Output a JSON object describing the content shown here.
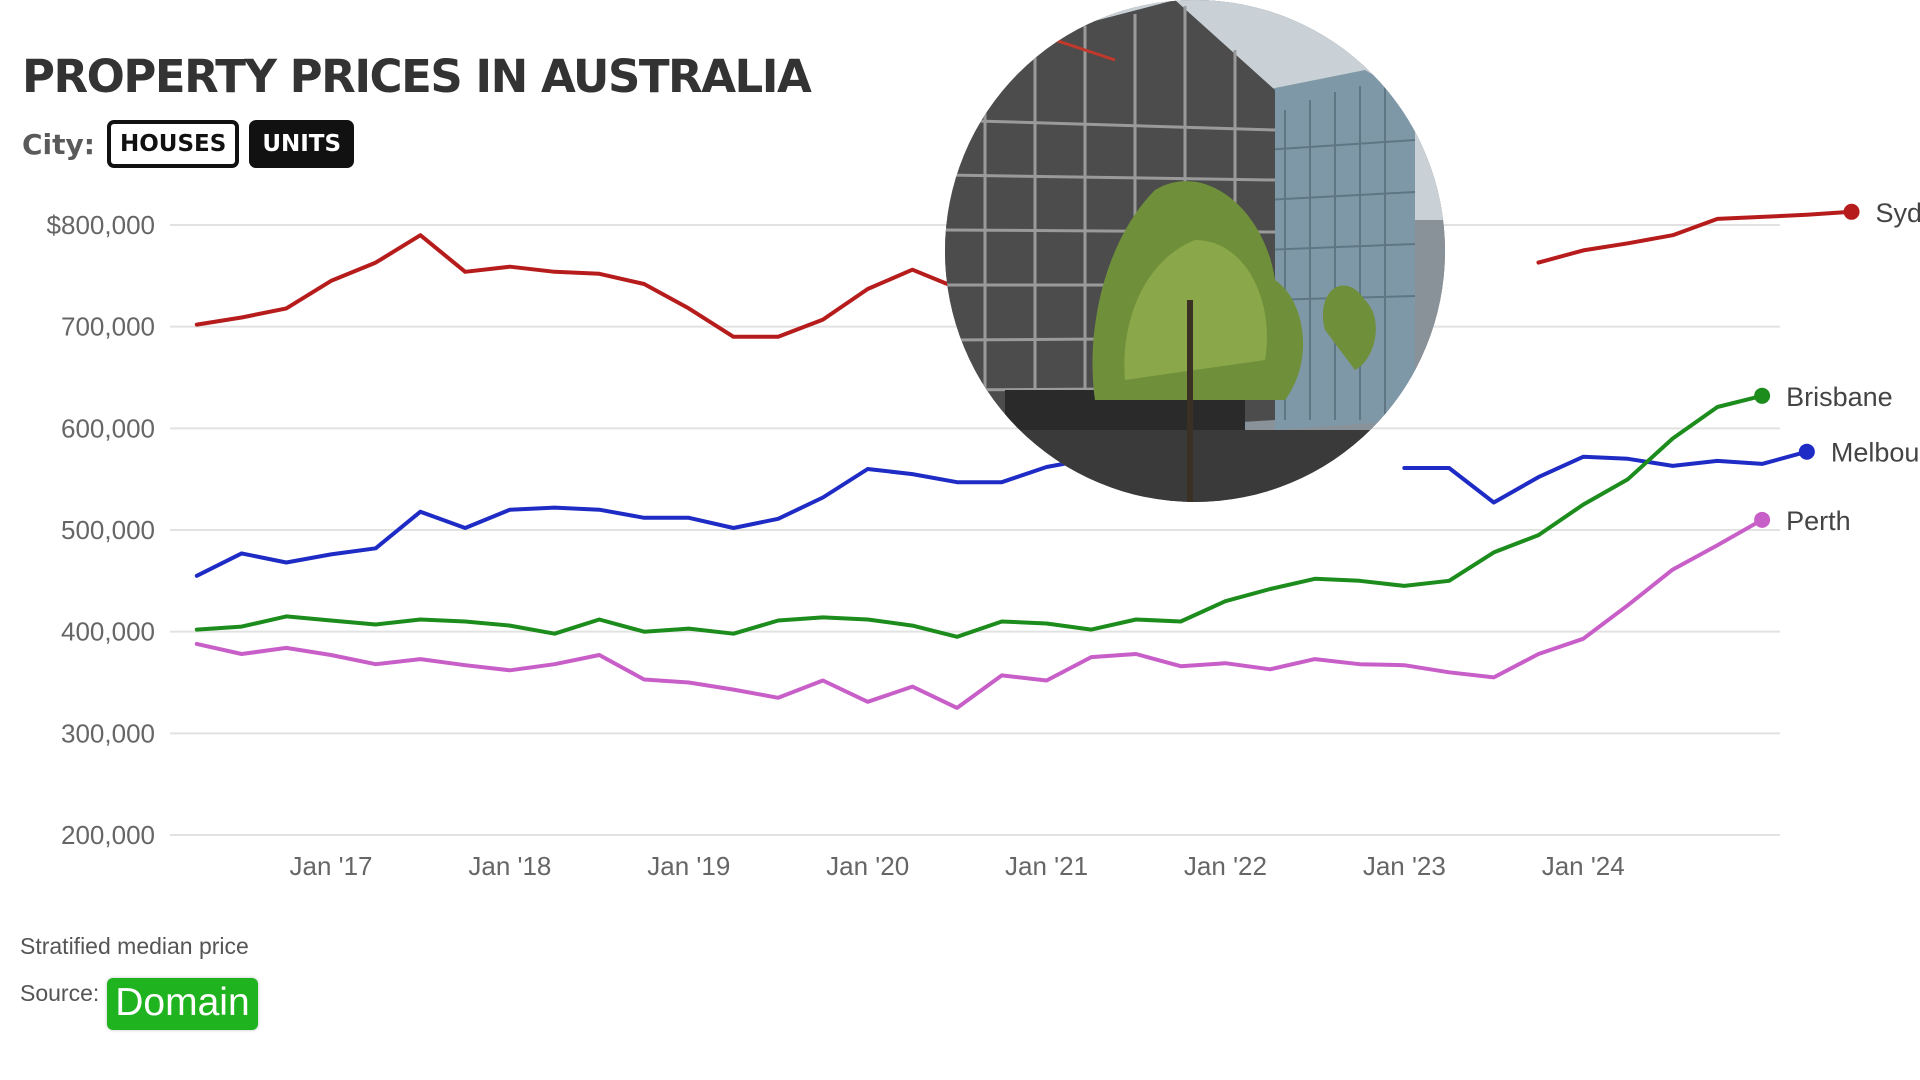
{
  "title": "PROPERTY PRICES IN AUSTRALIA",
  "toggle": {
    "label": "City:",
    "houses": "HOUSES",
    "units": "UNITS",
    "selected": "UNITS"
  },
  "footnote": "Stratified median price",
  "source": {
    "label": "Source:",
    "logo_text": "Domain",
    "logo_color": "#1fb41f"
  },
  "photo": {
    "subject": "building under construction with scaffolding, glass tower and trees",
    "icon": "photo-inset"
  },
  "chart_data": {
    "type": "line",
    "ylim": [
      200000,
      800000
    ],
    "yticks": [
      200000,
      300000,
      400000,
      500000,
      600000,
      700000,
      800000
    ],
    "ytick_labels": [
      "200,000",
      "300,000",
      "400,000",
      "500,000",
      "600,000",
      "700,000",
      "$800,000"
    ],
    "x_start": 2016.25,
    "x_step": 0.25,
    "xlim": [
      2016.1,
      2025.1
    ],
    "xtick_labels": [
      "Jan '17",
      "Jan '18",
      "Jan '19",
      "Jan '20",
      "Jan '21",
      "Jan '22",
      "Jan '23",
      "Jan '24"
    ],
    "xtick_values": [
      2017,
      2018,
      2019,
      2020,
      2021,
      2022,
      2023,
      2024
    ],
    "grid": true,
    "legend": "end-of-line labels",
    "series": [
      {
        "name": "Sydney",
        "color": "#b71c1c",
        "values": [
          702000,
          709000,
          718000,
          745000,
          763000,
          790000,
          754000,
          759000,
          754000,
          752000,
          742000,
          718000,
          690000,
          690000,
          707000,
          737000,
          756000,
          738000,
          null,
          null,
          null,
          null,
          null,
          null,
          null,
          null,
          null,
          null,
          null,
          null,
          763000,
          775000,
          782000,
          790000,
          806000,
          808000,
          810000,
          813000
        ]
      },
      {
        "name": "Melbourne",
        "color": "#1e2bc4",
        "values": [
          455000,
          477000,
          468000,
          476000,
          482000,
          518000,
          502000,
          520000,
          522000,
          520000,
          512000,
          512000,
          502000,
          511000,
          532000,
          560000,
          555000,
          547000,
          547000,
          562000,
          570000,
          null,
          null,
          null,
          null,
          null,
          null,
          561000,
          561000,
          527000,
          552000,
          572000,
          570000,
          563000,
          568000,
          565000,
          577000
        ]
      },
      {
        "name": "Brisbane",
        "color": "#1c8c1c",
        "values": [
          402000,
          405000,
          415000,
          411000,
          407000,
          412000,
          410000,
          406000,
          398000,
          412000,
          400000,
          403000,
          398000,
          411000,
          414000,
          412000,
          406000,
          395000,
          410000,
          408000,
          402000,
          412000,
          410000,
          430000,
          442000,
          452000,
          450000,
          445000,
          450000,
          478000,
          495000,
          525000,
          550000,
          590000,
          621000,
          632000
        ]
      },
      {
        "name": "Perth",
        "color": "#c85fc8",
        "values": [
          388000,
          378000,
          384000,
          377000,
          368000,
          373000,
          367000,
          362000,
          368000,
          377000,
          353000,
          350000,
          343000,
          335000,
          352000,
          331000,
          346000,
          325000,
          357000,
          352000,
          375000,
          378000,
          366000,
          369000,
          363000,
          373000,
          368000,
          367000,
          360000,
          355000,
          378000,
          393000,
          426000,
          461000,
          485000,
          510000
        ]
      }
    ]
  }
}
